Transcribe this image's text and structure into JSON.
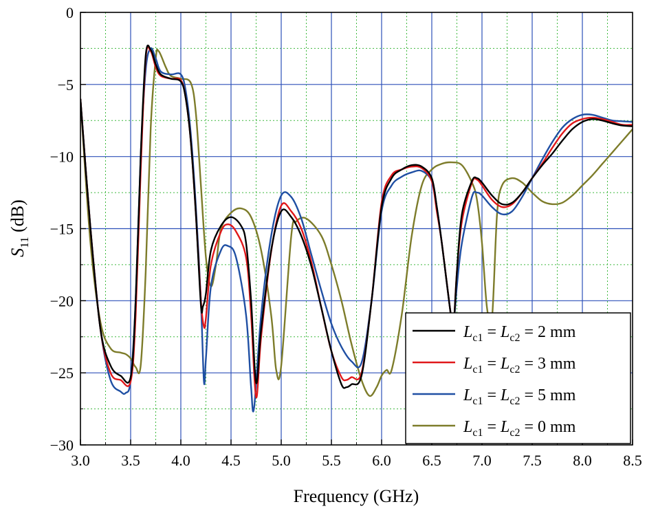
{
  "chart_data": {
    "type": "line",
    "xlabel": "Frequency (GHz)",
    "ylabel": {
      "symbol": "S",
      "subscript": "11",
      "unit": " (dB)"
    },
    "xlim": [
      3.0,
      8.5
    ],
    "ylim": [
      -30,
      0
    ],
    "x_ticks": [
      "3.0",
      "3.5",
      "4.0",
      "4.5",
      "5.0",
      "5.5",
      "6.0",
      "6.5",
      "7.0",
      "7.5",
      "8.0",
      "8.5"
    ],
    "y_ticks": [
      "0",
      "−5",
      "−10",
      "−15",
      "−20",
      "−25",
      "−30"
    ],
    "grid": {
      "major": true,
      "minor": true,
      "major_color": "#2b4fb8",
      "minor_color": "#3cb83c"
    },
    "legend_position": "bottom-right",
    "series": [
      {
        "name": "Lc1 = Lc2 = 2 mm",
        "legend": {
          "a": "L",
          "a_sub": "c1",
          "mid": " = ",
          "b": "L",
          "b_sub": "c2",
          "value": " = 2 mm"
        },
        "color": "#000000",
        "x": [
          3.0,
          3.1,
          3.2,
          3.3,
          3.4,
          3.5,
          3.55,
          3.6,
          3.65,
          3.7,
          3.75,
          3.8,
          3.9,
          4.0,
          4.05,
          4.1,
          4.15,
          4.2,
          4.22,
          4.25,
          4.3,
          4.4,
          4.5,
          4.6,
          4.65,
          4.7,
          4.75,
          4.8,
          4.9,
          5.0,
          5.1,
          5.2,
          5.3,
          5.4,
          5.5,
          5.6,
          5.65,
          5.7,
          5.8,
          5.9,
          6.0,
          6.1,
          6.2,
          6.3,
          6.4,
          6.5,
          6.55,
          6.6,
          6.7,
          6.72,
          6.75,
          6.8,
          6.9,
          6.95,
          7.0,
          7.1,
          7.2,
          7.3,
          7.4,
          7.5,
          7.6,
          7.7,
          7.8,
          7.9,
          8.0,
          8.1,
          8.2,
          8.3,
          8.4,
          8.5
        ],
        "y": [
          -6,
          -15,
          -22,
          -24.5,
          -25.2,
          -25.3,
          -20,
          -10,
          -3,
          -2.6,
          -3.6,
          -4.3,
          -4.6,
          -4.8,
          -6,
          -9,
          -14,
          -20.3,
          -20.4,
          -19.5,
          -16.5,
          -14.8,
          -14.2,
          -14.8,
          -16,
          -20,
          -25.7,
          -22,
          -16.5,
          -13.8,
          -14.2,
          -15.5,
          -17.6,
          -20.5,
          -23.5,
          -25.8,
          -26,
          -25.8,
          -25.2,
          -20,
          -13.5,
          -11.5,
          -10.9,
          -10.6,
          -10.7,
          -11.5,
          -13.5,
          -16,
          -21.5,
          -21.5,
          -18,
          -14,
          -11.7,
          -11.5,
          -11.8,
          -12.7,
          -13.3,
          -13.2,
          -12.5,
          -11.5,
          -10.6,
          -9.8,
          -8.9,
          -8.1,
          -7.6,
          -7.4,
          -7.5,
          -7.7,
          -7.85,
          -7.9
        ]
      },
      {
        "name": "Lc1 = Lc2 = 3 mm",
        "legend": {
          "a": "L",
          "a_sub": "c1",
          "mid": " = ",
          "b": "L",
          "b_sub": "c2",
          "value": " = 3 mm"
        },
        "color": "#e0181a",
        "x": [
          3.0,
          3.1,
          3.2,
          3.3,
          3.4,
          3.5,
          3.55,
          3.6,
          3.65,
          3.7,
          3.75,
          3.8,
          3.9,
          4.0,
          4.05,
          4.1,
          4.15,
          4.2,
          4.23,
          4.25,
          4.3,
          4.4,
          4.47,
          4.55,
          4.65,
          4.7,
          4.75,
          4.8,
          4.9,
          5.0,
          5.1,
          5.2,
          5.3,
          5.4,
          5.5,
          5.6,
          5.65,
          5.7,
          5.8,
          5.9,
          6.0,
          6.1,
          6.2,
          6.3,
          6.4,
          6.5,
          6.55,
          6.6,
          6.7,
          6.72,
          6.75,
          6.8,
          6.9,
          6.95,
          7.0,
          7.1,
          7.2,
          7.3,
          7.4,
          7.5,
          7.6,
          7.7,
          7.8,
          7.9,
          8.0,
          8.1,
          8.2,
          8.3,
          8.4,
          8.5
        ],
        "y": [
          -6,
          -15,
          -22,
          -25,
          -25.5,
          -25.6,
          -21,
          -11,
          -3.2,
          -2.7,
          -3.8,
          -4.4,
          -4.6,
          -4.7,
          -6,
          -9,
          -14,
          -20,
          -21.8,
          -21.2,
          -17.5,
          -15.2,
          -14.7,
          -15.2,
          -17,
          -21,
          -26.7,
          -22.5,
          -16.6,
          -13.4,
          -13.8,
          -15,
          -17.3,
          -20.5,
          -23.5,
          -25.3,
          -25.5,
          -25.3,
          -25,
          -20,
          -13.2,
          -11.3,
          -10.9,
          -10.7,
          -10.8,
          -11.7,
          -13.8,
          -16,
          -21.5,
          -21.5,
          -18,
          -14.5,
          -11.8,
          -11.6,
          -12,
          -13,
          -13.5,
          -13.3,
          -12.5,
          -11.5,
          -10.5,
          -9.4,
          -8.4,
          -7.7,
          -7.4,
          -7.3,
          -7.4,
          -7.6,
          -7.8,
          -7.8
        ]
      },
      {
        "name": "Lc1 = Lc2 = 5 mm",
        "legend": {
          "a": "L",
          "a_sub": "c1",
          "mid": " = ",
          "b": "L",
          "b_sub": "c2",
          "value": " = 5 mm"
        },
        "color": "#1f4fa3",
        "x": [
          3.0,
          3.1,
          3.2,
          3.3,
          3.4,
          3.45,
          3.5,
          3.55,
          3.6,
          3.65,
          3.7,
          3.75,
          3.8,
          3.9,
          4.0,
          4.05,
          4.1,
          4.15,
          4.2,
          4.23,
          4.25,
          4.3,
          4.4,
          4.47,
          4.55,
          4.65,
          4.7,
          4.73,
          4.8,
          4.9,
          5.0,
          5.1,
          5.2,
          5.3,
          5.4,
          5.5,
          5.6,
          5.7,
          5.8,
          5.9,
          6.0,
          6.1,
          6.2,
          6.3,
          6.4,
          6.5,
          6.55,
          6.6,
          6.7,
          6.72,
          6.75,
          6.8,
          6.9,
          6.95,
          7.0,
          7.1,
          7.2,
          7.3,
          7.4,
          7.5,
          7.6,
          7.7,
          7.8,
          7.9,
          8.0,
          8.1,
          8.2,
          8.3,
          8.4,
          8.5
        ],
        "y": [
          -6,
          -15,
          -22,
          -25.5,
          -26.3,
          -26.4,
          -25.5,
          -20,
          -10,
          -4,
          -2.5,
          -3.2,
          -4.1,
          -4.3,
          -4.3,
          -5.5,
          -8.5,
          -13.5,
          -20,
          -25.6,
          -24,
          -19,
          -16.5,
          -16.2,
          -17,
          -21,
          -26,
          -27.4,
          -21,
          -15.5,
          -12.7,
          -12.8,
          -14.3,
          -16.8,
          -19.3,
          -21.6,
          -23.2,
          -24.2,
          -24.3,
          -20,
          -13.8,
          -12,
          -11.4,
          -11.1,
          -11,
          -11.7,
          -13.5,
          -16,
          -21.5,
          -21.5,
          -19,
          -16,
          -12.8,
          -12.5,
          -12.7,
          -13.5,
          -14,
          -13.8,
          -12.8,
          -11.5,
          -10.2,
          -9,
          -8,
          -7.4,
          -7.1,
          -7.1,
          -7.3,
          -7.5,
          -7.55,
          -7.6
        ]
      },
      {
        "name": "Lc1 = Lc2 = 0 mm",
        "legend": {
          "a": "L",
          "a_sub": "c1",
          "mid": " = ",
          "b": "L",
          "b_sub": "c2",
          "value": " = 0 mm"
        },
        "color": "#7d7c2a",
        "x": [
          3.0,
          3.1,
          3.2,
          3.3,
          3.4,
          3.45,
          3.5,
          3.55,
          3.6,
          3.65,
          3.7,
          3.75,
          3.78,
          3.85,
          3.9,
          4.0,
          4.1,
          4.15,
          4.2,
          4.25,
          4.3,
          4.35,
          4.4,
          4.5,
          4.6,
          4.7,
          4.8,
          4.9,
          4.95,
          5.0,
          5.1,
          5.15,
          5.25,
          5.4,
          5.5,
          5.6,
          5.7,
          5.8,
          5.88,
          5.95,
          6.0,
          6.05,
          6.1,
          6.2,
          6.3,
          6.4,
          6.5,
          6.6,
          6.7,
          6.8,
          6.9,
          6.95,
          7.0,
          7.05,
          7.1,
          7.15,
          7.2,
          7.3,
          7.4,
          7.5,
          7.6,
          7.7,
          7.8,
          7.9,
          8.0,
          8.1,
          8.2,
          8.3,
          8.4,
          8.5
        ],
        "y": [
          -6,
          -16,
          -21.5,
          -23.3,
          -23.6,
          -23.7,
          -24,
          -24.6,
          -24.5,
          -18,
          -8,
          -3.2,
          -2.7,
          -3.8,
          -4.4,
          -4.6,
          -4.9,
          -7,
          -12,
          -17,
          -19,
          -17.5,
          -15,
          -13.9,
          -13.6,
          -14.2,
          -16.5,
          -21,
          -24.8,
          -24.5,
          -15.5,
          -14.5,
          -14.3,
          -15.5,
          -17.5,
          -20,
          -23,
          -25.5,
          -26.6,
          -26,
          -25.2,
          -24.8,
          -24.8,
          -21,
          -15.5,
          -12,
          -10.9,
          -10.5,
          -10.4,
          -10.6,
          -11.8,
          -13,
          -16,
          -20.5,
          -21.2,
          -14,
          -12,
          -11.5,
          -11.8,
          -12.5,
          -13.1,
          -13.3,
          -13.2,
          -12.7,
          -12,
          -11.3,
          -10.5,
          -9.7,
          -8.9,
          -8.1
        ]
      }
    ]
  }
}
